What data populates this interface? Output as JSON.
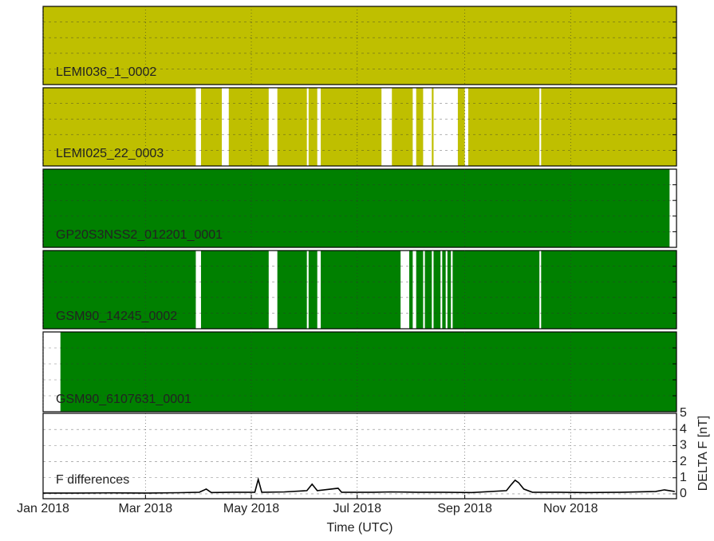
{
  "chart_data": {
    "type": "availability",
    "xlim": [
      "2018-01-01",
      "2019-01-01"
    ],
    "xticks": [
      {
        "value": "2018-01-01",
        "label": "Jan 2018"
      },
      {
        "value": "2018-03-01",
        "label": "Mar 2018"
      },
      {
        "value": "2018-05-01",
        "label": "May 2018"
      },
      {
        "value": "2018-07-01",
        "label": "Jul 2018"
      },
      {
        "value": "2018-09-01",
        "label": "Sep 2018"
      },
      {
        "value": "2018-11-01",
        "label": "Nov 2018"
      }
    ],
    "xlabel": "Time (UTC)",
    "grid": true,
    "series": [
      {
        "name": "LEMI036_1_0002",
        "color": "#bfbf00",
        "start": "2018-01-01",
        "end": "2019-01-01",
        "gaps": []
      },
      {
        "name": "LEMI025_22_0003",
        "color": "#bfbf00",
        "start": "2018-01-01",
        "end": "2019-01-01",
        "gaps": [
          [
            "2018-03-30",
            "2018-04-02"
          ],
          [
            "2018-04-14",
            "2018-04-18"
          ],
          [
            "2018-05-11",
            "2018-05-16"
          ],
          [
            "2018-06-02",
            "2018-06-03"
          ],
          [
            "2018-06-08",
            "2018-06-10"
          ],
          [
            "2018-07-15",
            "2018-07-21"
          ],
          [
            "2018-08-02",
            "2018-08-04"
          ],
          [
            "2018-08-08",
            "2018-08-13"
          ],
          [
            "2018-08-14",
            "2018-08-28"
          ],
          [
            "2018-09-01",
            "2018-09-03"
          ],
          [
            "2018-10-14",
            "2018-10-15"
          ]
        ]
      },
      {
        "name": "GP20S3NSS2_012201_0001",
        "color": "#008000",
        "start": "2018-01-01",
        "end": "2018-12-28",
        "gaps": []
      },
      {
        "name": "GSM90_14245_0002",
        "color": "#008000",
        "start": "2018-01-01",
        "end": "2019-01-01",
        "gaps": [
          [
            "2018-03-30",
            "2018-04-02"
          ],
          [
            "2018-05-11",
            "2018-05-16"
          ],
          [
            "2018-06-02",
            "2018-06-03"
          ],
          [
            "2018-06-08",
            "2018-06-10"
          ],
          [
            "2018-07-26",
            "2018-07-31"
          ],
          [
            "2018-08-02",
            "2018-08-04"
          ],
          [
            "2018-08-08",
            "2018-08-09"
          ],
          [
            "2018-08-13",
            "2018-08-14"
          ],
          [
            "2018-08-18",
            "2018-08-19"
          ],
          [
            "2018-08-21",
            "2018-08-22"
          ],
          [
            "2018-08-24",
            "2018-08-25"
          ],
          [
            "2018-10-14",
            "2018-10-15"
          ]
        ]
      },
      {
        "name": "GSM90_6107631_0001",
        "color": "#008000",
        "start": "2018-01-11",
        "end": "2019-01-01",
        "gaps": []
      }
    ],
    "differences": {
      "type": "line",
      "name": "F differences",
      "color": "#000000",
      "ylabel": "DELTA F [nT]",
      "ylim": [
        -0.3,
        5
      ],
      "yticks": [
        0,
        1,
        2,
        3,
        4,
        5
      ],
      "x": [
        "2018-01-01",
        "2018-01-20",
        "2018-02-10",
        "2018-03-01",
        "2018-03-20",
        "2018-04-01",
        "2018-04-05",
        "2018-04-08",
        "2018-04-20",
        "2018-05-03",
        "2018-05-05",
        "2018-05-07",
        "2018-05-20",
        "2018-06-02",
        "2018-06-05",
        "2018-06-08",
        "2018-06-20",
        "2018-06-22",
        "2018-07-10",
        "2018-07-20",
        "2018-08-05",
        "2018-08-20",
        "2018-09-05",
        "2018-09-25",
        "2018-09-28",
        "2018-09-30",
        "2018-10-02",
        "2018-10-05",
        "2018-10-10",
        "2018-10-25",
        "2018-11-10",
        "2018-11-30",
        "2018-12-20",
        "2018-12-25",
        "2018-12-31"
      ],
      "values": [
        0.05,
        0.05,
        0.06,
        0.05,
        0.07,
        0.1,
        0.3,
        0.08,
        0.1,
        0.1,
        0.9,
        0.1,
        0.12,
        0.2,
        0.6,
        0.2,
        0.35,
        0.1,
        0.1,
        0.12,
        0.1,
        0.1,
        0.08,
        0.2,
        0.6,
        0.85,
        0.7,
        0.3,
        0.1,
        0.1,
        0.08,
        0.1,
        0.15,
        0.25,
        0.15
      ]
    }
  }
}
